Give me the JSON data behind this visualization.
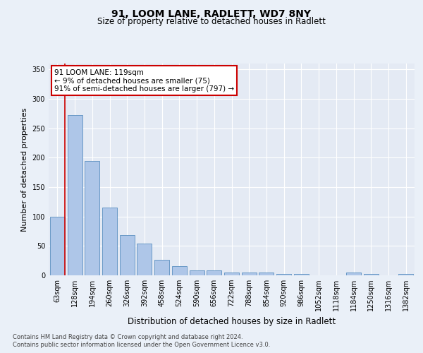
{
  "title_line1": "91, LOOM LANE, RADLETT, WD7 8NY",
  "title_line2": "Size of property relative to detached houses in Radlett",
  "xlabel": "Distribution of detached houses by size in Radlett",
  "ylabel": "Number of detached properties",
  "categories": [
    "63sqm",
    "128sqm",
    "194sqm",
    "260sqm",
    "326sqm",
    "392sqm",
    "458sqm",
    "524sqm",
    "590sqm",
    "656sqm",
    "722sqm",
    "788sqm",
    "854sqm",
    "920sqm",
    "986sqm",
    "1052sqm",
    "1118sqm",
    "1184sqm",
    "1250sqm",
    "1316sqm",
    "1382sqm"
  ],
  "values": [
    100,
    272,
    195,
    115,
    68,
    54,
    27,
    16,
    9,
    8,
    5,
    5,
    5,
    3,
    3,
    0,
    0,
    5,
    3,
    0,
    2
  ],
  "bar_color": "#aec6e8",
  "bar_edge_color": "#5a8fc0",
  "annotation_text_line1": "91 LOOM LANE: 119sqm",
  "annotation_text_line2": "← 9% of detached houses are smaller (75)",
  "annotation_text_line3": "91% of semi-detached houses are larger (797) →",
  "red_line_x": 0.45,
  "ylim": [
    0,
    360
  ],
  "yticks": [
    0,
    50,
    100,
    150,
    200,
    250,
    300,
    350
  ],
  "footer_line1": "Contains HM Land Registry data © Crown copyright and database right 2024.",
  "footer_line2": "Contains public sector information licensed under the Open Government Licence v3.0.",
  "bg_color": "#eaf0f8",
  "plot_bg_color": "#e4eaf4",
  "grid_color": "#ffffff",
  "annotation_box_color": "#ffffff",
  "annotation_box_edge_color": "#cc0000",
  "red_line_color": "#cc0000",
  "title1_fontsize": 10,
  "title2_fontsize": 8.5,
  "ylabel_fontsize": 8,
  "xlabel_fontsize": 8.5,
  "tick_fontsize": 7,
  "annot_fontsize": 7.5,
  "footer_fontsize": 6
}
